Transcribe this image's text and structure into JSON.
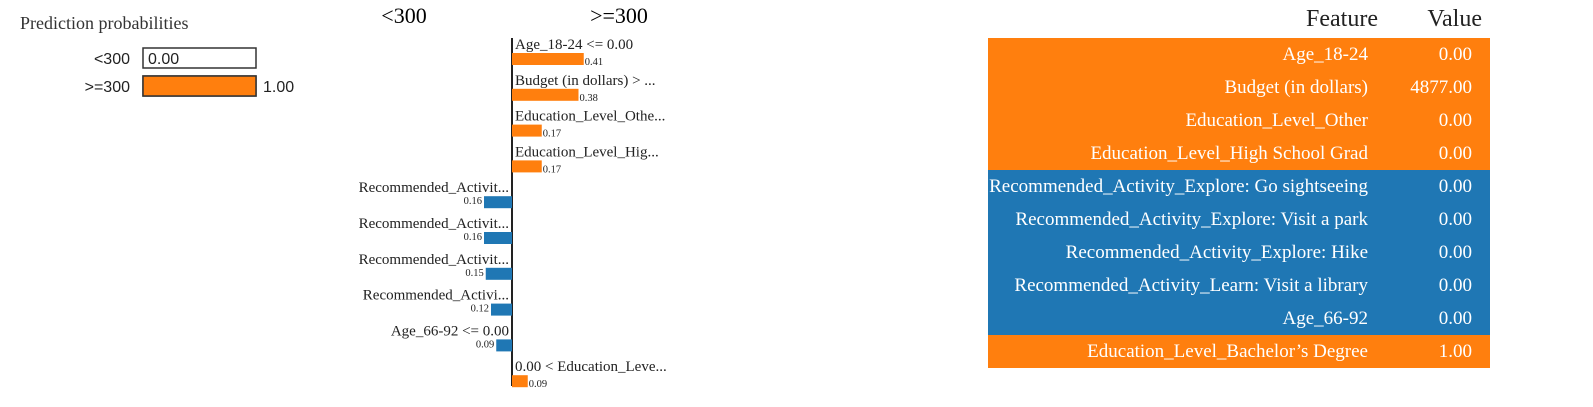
{
  "colors": {
    "negative": "#1f77b4",
    "positive": "#ff7f0e"
  },
  "chart_data": [
    {
      "type": "bar",
      "title": "Prediction probabilities",
      "categories": [
        "<300",
        ">=300"
      ],
      "values": [
        0.0,
        1.0
      ],
      "value_labels": [
        "0.00",
        "1.00"
      ],
      "xlim": [
        0,
        1
      ]
    },
    {
      "type": "bar",
      "orientation": "horizontal",
      "class_labels": {
        "negative": "<300",
        "positive": ">=300"
      },
      "categories": [
        "Age_18-24 <= 0.00",
        "Budget (in dollars) > ...",
        "Education_Level_Othe...",
        "Education_Level_Hig...",
        "Recommended_Activit...",
        "Recommended_Activit...",
        "Recommended_Activit...",
        "Recommended_Activi...",
        "Age_66-92 <= 0.00",
        "0.00 < Education_Leve..."
      ],
      "values": [
        0.41,
        0.38,
        0.17,
        0.17,
        -0.16,
        -0.16,
        -0.15,
        -0.12,
        -0.09,
        0.09
      ],
      "value_labels": [
        "0.41",
        "0.38",
        "0.17",
        "0.17",
        "0.16",
        "0.16",
        "0.15",
        "0.12",
        "0.09",
        "0.09"
      ]
    },
    {
      "type": "table",
      "columns": [
        "Feature",
        "Value"
      ],
      "rows": [
        {
          "feature": "Age_18-24",
          "value": "0.00",
          "class": "positive"
        },
        {
          "feature": "Budget (in dollars)",
          "value": "4877.00",
          "class": "positive"
        },
        {
          "feature": "Education_Level_Other",
          "value": "0.00",
          "class": "positive"
        },
        {
          "feature": "Education_Level_High School Grad",
          "value": "0.00",
          "class": "positive"
        },
        {
          "feature": "Recommended_Activity_Explore: Go sightseeing",
          "value": "0.00",
          "class": "negative"
        },
        {
          "feature": "Recommended_Activity_Explore: Visit a park",
          "value": "0.00",
          "class": "negative"
        },
        {
          "feature": "Recommended_Activity_Explore: Hike",
          "value": "0.00",
          "class": "negative"
        },
        {
          "feature": "Recommended_Activity_Learn: Visit a library",
          "value": "0.00",
          "class": "negative"
        },
        {
          "feature": "Age_66-92",
          "value": "0.00",
          "class": "negative"
        },
        {
          "feature": "Education_Level_Bachelor’s Degree",
          "value": "1.00",
          "class": "positive"
        }
      ]
    }
  ]
}
